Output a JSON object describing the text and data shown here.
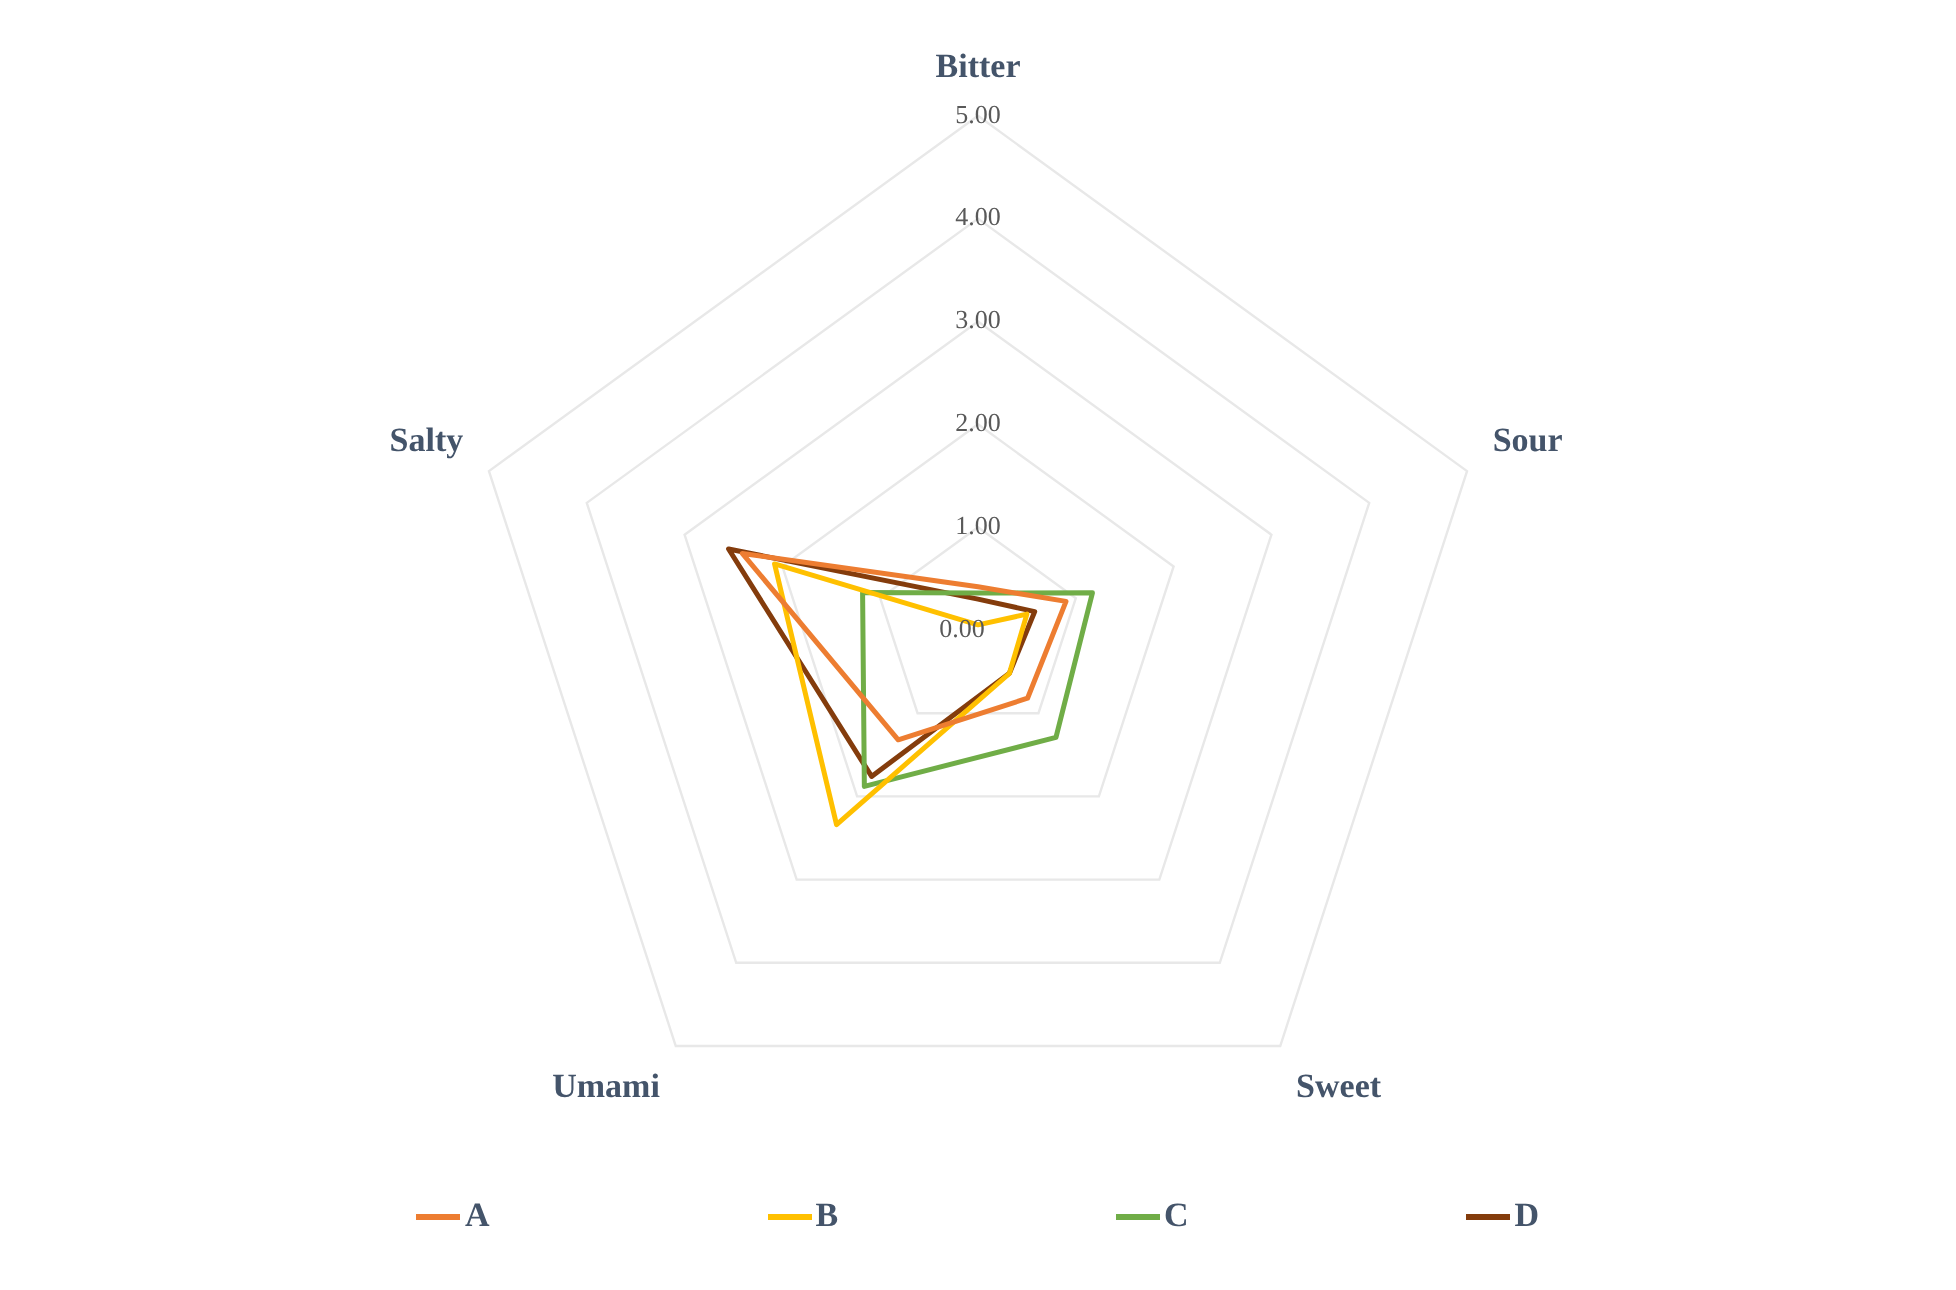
{
  "chart_data": {
    "type": "radar",
    "categories": [
      "Bitter",
      "Sour",
      "Sweet",
      "Umami",
      "Salty"
    ],
    "series": [
      {
        "name": "A",
        "color": "#ed7d31",
        "values": [
          0.42,
          0.9,
          0.82,
          1.32,
          2.41
        ]
      },
      {
        "name": "B",
        "color": "#ffc000",
        "values": [
          0.05,
          0.5,
          0.52,
          2.34,
          2.08
        ]
      },
      {
        "name": "C",
        "color": "#70ad47",
        "values": [
          0.36,
          1.17,
          1.29,
          1.88,
          1.18
        ]
      },
      {
        "name": "D",
        "color": "#843c0c",
        "values": [
          0.3,
          0.58,
          0.52,
          1.76,
          2.55
        ]
      }
    ],
    "ylim": [
      0,
      5
    ],
    "yticks": [
      {
        "value": 0,
        "label": "0.00"
      },
      {
        "value": 1,
        "label": "1.00"
      },
      {
        "value": 2,
        "label": "2.00"
      },
      {
        "value": 3,
        "label": "3.00"
      },
      {
        "value": 4,
        "label": "4.00"
      },
      {
        "value": 5,
        "label": "5.00"
      }
    ],
    "grid": true,
    "legend": "bottom",
    "marker": "none"
  }
}
